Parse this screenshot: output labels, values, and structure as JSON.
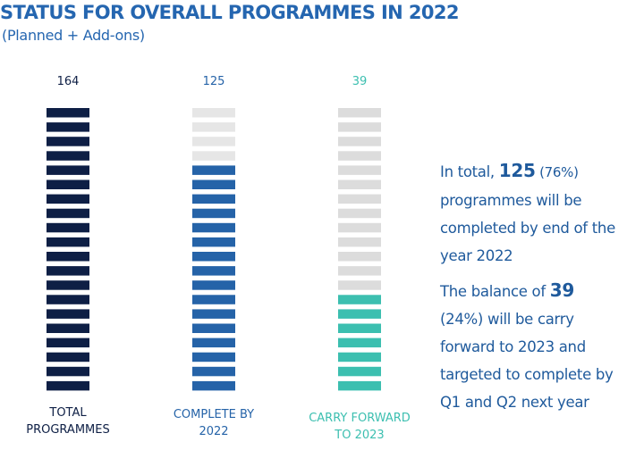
{
  "title": "STATUS FOR OVERALL PROGRAMMES IN 2022",
  "subtitle": "(Planned + Add-ons)",
  "chart_data": {
    "type": "bar",
    "title": "STATUS FOR OVERALL PROGRAMMES IN 2022",
    "subtitle": "(Planned + Add-ons)",
    "categories": [
      "TOTAL PROGRAMMES",
      "COMPLETE BY 2022",
      "CARRY FORWARD TO 2023"
    ],
    "values": [
      164,
      125,
      39
    ],
    "columns": [
      {
        "name_lines": [
          "TOTAL",
          "PROGRAMMES"
        ],
        "value": 164,
        "value_label": "164",
        "filled_segments": 20,
        "total_segments": 20,
        "fill_color": "#0e1f45",
        "empty_color": "#e6e6e6",
        "label_color": "#0e1f45",
        "value_color": "#0e1f45"
      },
      {
        "name_lines": [
          "COMPLETE BY",
          "2022"
        ],
        "value": 125,
        "value_label": "125",
        "filled_segments": 16,
        "total_segments": 20,
        "fill_color": "#2563a8",
        "empty_color": "#e6e6e6",
        "label_color": "#2563a8",
        "value_color": "#2563a8"
      },
      {
        "name_lines": [
          "CARRY FORWARD",
          "TO 2023"
        ],
        "value": 39,
        "value_label": "39",
        "filled_segments": 7,
        "total_segments": 20,
        "fill_color": "#3cbfb0",
        "empty_color": "#dcdcdc",
        "label_color": "#3cbfb0",
        "value_color": "#3cbfb0"
      }
    ]
  },
  "summary": {
    "p1_before": "In total, ",
    "p1_total": "125",
    "p1_percent": " (76%)",
    "p1_after": " programmes will be completed by end of the year 2022",
    "p2_before": "The balance of ",
    "p2_value": "39",
    "p2_percent": "(24%)",
    "p2_after": " will be carry forward to 2023 and targeted to complete by Q1 and Q2 next year"
  }
}
